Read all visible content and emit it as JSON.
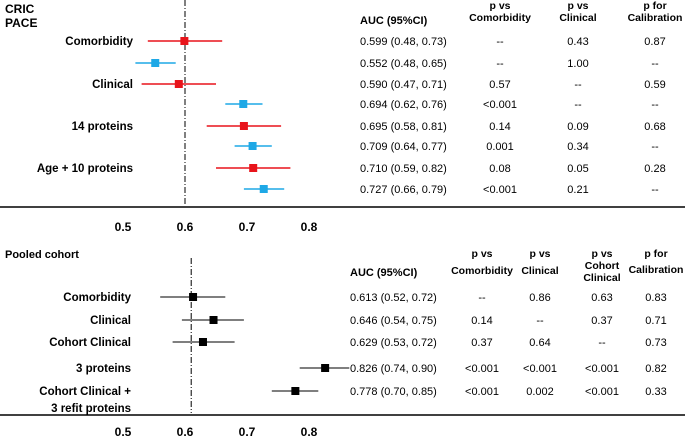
{
  "legend": [
    {
      "name": "CRIC",
      "color": "#e8141b"
    },
    {
      "name": "PACE",
      "color": "#1ea8e6"
    }
  ],
  "top_panel": {
    "headers": {
      "auc": "AUC (95%CI)",
      "p_comorb": [
        "p vs",
        "Comorbidity"
      ],
      "p_clinical": [
        "p vs",
        "Clinical"
      ],
      "p_calib": [
        "p for",
        "Calibration"
      ]
    },
    "rows": [
      {
        "label": "Comorbidity",
        "cohort": "CRIC",
        "auc": "0.599 (0.48, 0.73)",
        "p_comorb": "--",
        "p_clinical": "0.43",
        "p_calib": "0.87"
      },
      {
        "label": "",
        "cohort": "PACE",
        "auc": "0.552 (0.48, 0.65)",
        "p_comorb": "--",
        "p_clinical": "1.00",
        "p_calib": "--"
      },
      {
        "label": "Clinical",
        "cohort": "CRIC",
        "auc": "0.590 (0.47, 0.71)",
        "p_comorb": "0.57",
        "p_clinical": "--",
        "p_calib": "0.59"
      },
      {
        "label": "",
        "cohort": "PACE",
        "auc": "0.694 (0.62, 0.76)",
        "p_comorb": "<0.001",
        "p_clinical": "--",
        "p_calib": "--"
      },
      {
        "label": "14 proteins",
        "cohort": "CRIC",
        "auc": "0.695 (0.58, 0.81)",
        "p_comorb": "0.14",
        "p_clinical": "0.09",
        "p_calib": "0.68"
      },
      {
        "label": "",
        "cohort": "PACE",
        "auc": "0.709 (0.64, 0.77)",
        "p_comorb": "0.001",
        "p_clinical": "0.34",
        "p_calib": "--"
      },
      {
        "label": "Age + 10 proteins",
        "cohort": "CRIC",
        "auc": "0.710 (0.59, 0.82)",
        "p_comorb": "0.08",
        "p_clinical": "0.05",
        "p_calib": "0.28"
      },
      {
        "label": "",
        "cohort": "PACE",
        "auc": "0.727 (0.66, 0.79)",
        "p_comorb": "<0.001",
        "p_clinical": "0.21",
        "p_calib": "--"
      }
    ]
  },
  "bottom_panel": {
    "title": "Pooled cohort",
    "headers": {
      "auc": "AUC (95%CI)",
      "p_comorb": [
        "p vs",
        "Comorbidity"
      ],
      "p_clinical": [
        "p vs",
        "Clinical"
      ],
      "p_cohort": [
        "p vs",
        "Cohort",
        "Clinical"
      ],
      "p_calib": [
        "p for",
        "Calibration"
      ]
    },
    "rows": [
      {
        "label": [
          "Comorbidity"
        ],
        "auc": "0.613 (0.52, 0.72)",
        "p_comorb": "--",
        "p_clinical": "0.86",
        "p_cohort": "0.63",
        "p_calib": "0.83"
      },
      {
        "label": [
          "Clinical"
        ],
        "auc": "0.646 (0.54, 0.75)",
        "p_comorb": "0.14",
        "p_clinical": "--",
        "p_cohort": "0.37",
        "p_calib": "0.71"
      },
      {
        "label": [
          "Cohort Clinical"
        ],
        "auc": "0.629 (0.53, 0.72)",
        "p_comorb": "0.37",
        "p_clinical": "0.64",
        "p_cohort": "--",
        "p_calib": "0.73"
      },
      {
        "label": [
          "3 proteins"
        ],
        "auc": "0.826 (0.74, 0.90)",
        "p_comorb": "<0.001",
        "p_clinical": "<0.001",
        "p_cohort": "<0.001",
        "p_calib": "0.82"
      },
      {
        "label": [
          "Cohort Clinical +",
          "3 refit proteins"
        ],
        "auc": "0.778 (0.70, 0.85)",
        "p_comorb": "<0.001",
        "p_clinical": "0.002",
        "p_cohort": "<0.001",
        "p_calib": "0.33"
      }
    ]
  },
  "chart_data": [
    {
      "type": "forest",
      "xlim": [
        0.5,
        0.8
      ],
      "x_ticks": [
        "0.5",
        "0.6",
        "0.7",
        "0.8"
      ],
      "reference_line": 0.6,
      "series": [
        {
          "name": "CRIC",
          "color": "#e8141b",
          "points": [
            {
              "x": 0.599,
              "lo": 0.54,
              "hi": 0.66
            },
            {
              "x": 0.59,
              "lo": 0.53,
              "hi": 0.65
            },
            {
              "x": 0.695,
              "lo": 0.635,
              "hi": 0.755
            },
            {
              "x": 0.71,
              "lo": 0.65,
              "hi": 0.77
            }
          ]
        },
        {
          "name": "PACE",
          "color": "#1ea8e6",
          "points": [
            {
              "x": 0.552,
              "lo": 0.52,
              "hi": 0.585
            },
            {
              "x": 0.694,
              "lo": 0.665,
              "hi": 0.725
            },
            {
              "x": 0.709,
              "lo": 0.68,
              "hi": 0.74
            },
            {
              "x": 0.727,
              "lo": 0.695,
              "hi": 0.76
            }
          ]
        }
      ]
    },
    {
      "type": "forest",
      "xlim": [
        0.5,
        0.8
      ],
      "x_ticks": [
        "0.5",
        "0.6",
        "0.7",
        "0.8"
      ],
      "reference_line": 0.61,
      "series": [
        {
          "color": "#000000",
          "points": [
            {
              "x": 0.613,
              "lo": 0.56,
              "hi": 0.665
            },
            {
              "x": 0.646,
              "lo": 0.595,
              "hi": 0.695
            },
            {
              "x": 0.629,
              "lo": 0.58,
              "hi": 0.68
            },
            {
              "x": 0.826,
              "lo": 0.785,
              "hi": 0.865
            },
            {
              "x": 0.778,
              "lo": 0.74,
              "hi": 0.815
            }
          ]
        }
      ]
    }
  ]
}
